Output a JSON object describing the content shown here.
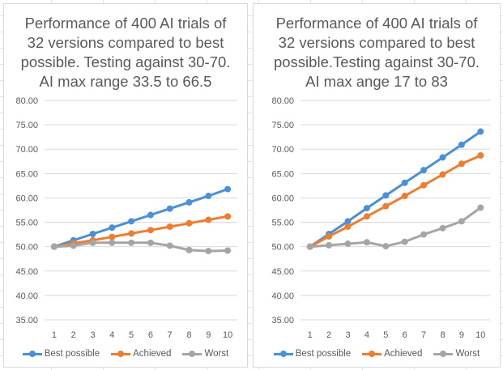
{
  "chart_data": [
    {
      "type": "line",
      "title": "Performance of 400 AI trials of\n32 versions compared to best\npossible. Testing against 30-70.\nAI max range 33.5 to 66.5",
      "x": [
        1,
        2,
        3,
        4,
        5,
        6,
        7,
        8,
        9,
        10
      ],
      "ylim": [
        35,
        80
      ],
      "yticks": [
        "35.00",
        "40.00",
        "45.00",
        "50.00",
        "55.00",
        "60.00",
        "65.00",
        "70.00",
        "75.00",
        "80.00"
      ],
      "grid": true,
      "legend_position": "bottom",
      "series": [
        {
          "name": "Best possible",
          "color": "#4a90d9",
          "values": [
            50.0,
            51.3,
            52.6,
            53.9,
            55.2,
            56.5,
            57.8,
            59.1,
            60.4,
            61.8
          ]
        },
        {
          "name": "Achieved",
          "color": "#ed7d31",
          "values": [
            50.0,
            50.7,
            51.3,
            52.0,
            52.7,
            53.4,
            54.1,
            54.8,
            55.5,
            56.2
          ]
        },
        {
          "name": "Worst",
          "color": "#a5a5a5",
          "values": [
            50.0,
            50.2,
            50.8,
            50.8,
            50.8,
            50.8,
            50.2,
            49.3,
            49.1,
            49.2
          ]
        }
      ]
    },
    {
      "type": "line",
      "title": "Performance of 400 AI trials of\n32 versions compared to best\npossible.Testing against 30-70.\nAI max ange 17 to 83",
      "x": [
        1,
        2,
        3,
        4,
        5,
        6,
        7,
        8,
        9,
        10
      ],
      "ylim": [
        35,
        80
      ],
      "yticks": [
        "35.00",
        "40.00",
        "45.00",
        "50.00",
        "55.00",
        "60.00",
        "65.00",
        "70.00",
        "75.00",
        "80.00"
      ],
      "grid": true,
      "legend_position": "bottom",
      "series": [
        {
          "name": "Best possible",
          "color": "#4a90d9",
          "values": [
            50.0,
            52.6,
            55.2,
            57.9,
            60.5,
            63.1,
            65.7,
            68.3,
            70.9,
            73.6
          ]
        },
        {
          "name": "Achieved",
          "color": "#ed7d31",
          "values": [
            50.0,
            52.1,
            54.1,
            56.2,
            58.3,
            60.4,
            62.6,
            64.8,
            67.0,
            68.7
          ]
        },
        {
          "name": "Worst",
          "color": "#a5a5a5",
          "values": [
            50.0,
            50.3,
            50.6,
            50.9,
            50.1,
            51.0,
            52.5,
            53.8,
            55.2,
            58.0
          ]
        }
      ]
    }
  ]
}
